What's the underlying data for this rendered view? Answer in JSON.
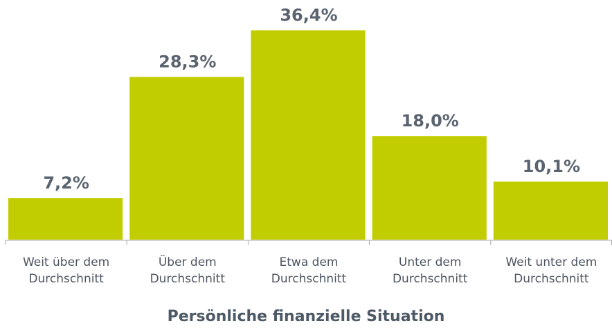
{
  "chart_data": {
    "type": "bar",
    "x_label": "Persönliche finanzielle Situation",
    "categories": [
      "Weit über dem Durchschnitt",
      "Über dem Durchschnitt",
      "Etwa dem Durchschnitt",
      "Unter dem Durchschnitt",
      "Weit unter dem Durchschnitt"
    ],
    "values": [
      7.2,
      28.3,
      36.4,
      18.0,
      10.1
    ],
    "value_labels": [
      "7,2%",
      "28,3%",
      "36,4%",
      "18,0%",
      "10,1%"
    ],
    "color": "#c2cd00"
  }
}
